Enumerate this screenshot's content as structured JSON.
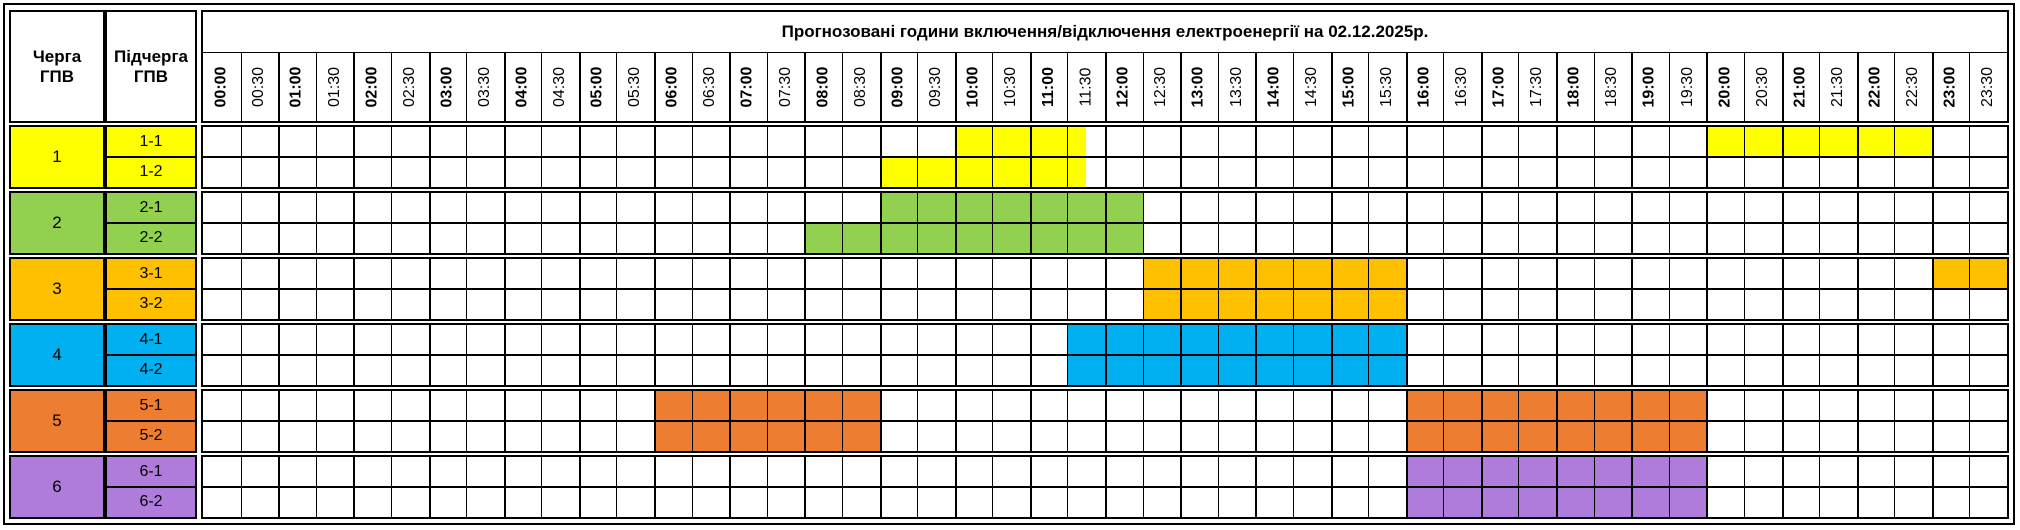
{
  "header": {
    "queue_label": "Черга\nГПВ",
    "subqueue_label": "Підчерга\nГПВ",
    "title": "Прогнозовані години включення/відключення електроенергії на 02.12.2025р."
  },
  "times": [
    "00:00",
    "00:30",
    "01:00",
    "01:30",
    "02:00",
    "02:30",
    "03:00",
    "03:30",
    "04:00",
    "04:30",
    "05:00",
    "05:30",
    "06:00",
    "06:30",
    "07:00",
    "07:30",
    "08:00",
    "08:30",
    "09:00",
    "09:30",
    "10:00",
    "10:30",
    "11:00",
    "11:30",
    "12:00",
    "12:30",
    "13:00",
    "13:30",
    "14:00",
    "14:30",
    "15:00",
    "15:30",
    "16:00",
    "16:30",
    "17:00",
    "17:30",
    "18:00",
    "18:30",
    "19:00",
    "19:30",
    "20:00",
    "20:30",
    "21:00",
    "21:30",
    "22:00",
    "22:30",
    "23:00",
    "23:30"
  ],
  "groups": [
    {
      "label": "1",
      "color": "#ffff00",
      "subs": [
        {
          "label": "1-1",
          "outages": [
            [
              20,
              23.5
            ],
            [
              40,
              46
            ]
          ]
        },
        {
          "label": "1-2",
          "outages": [
            [
              18,
              23.5
            ]
          ]
        }
      ]
    },
    {
      "label": "2",
      "color": "#92d050",
      "subs": [
        {
          "label": "2-1",
          "outages": [
            [
              18,
              25
            ]
          ]
        },
        {
          "label": "2-2",
          "outages": [
            [
              16,
              25
            ]
          ]
        }
      ]
    },
    {
      "label": "3",
      "color": "#ffc000",
      "subs": [
        {
          "label": "3-1",
          "outages": [
            [
              25,
              32
            ],
            [
              46,
              48
            ]
          ]
        },
        {
          "label": "3-2",
          "outages": [
            [
              25,
              32
            ]
          ]
        }
      ]
    },
    {
      "label": "4",
      "color": "#00b0f0",
      "subs": [
        {
          "label": "4-1",
          "outages": [
            [
              23,
              32
            ]
          ]
        },
        {
          "label": "4-2",
          "outages": [
            [
              23,
              32
            ]
          ]
        }
      ]
    },
    {
      "label": "5",
      "color": "#ed7d31",
      "subs": [
        {
          "label": "5-1",
          "outages": [
            [
              12,
              18
            ],
            [
              32,
              40
            ]
          ]
        },
        {
          "label": "5-2",
          "outages": [
            [
              12,
              18
            ],
            [
              32,
              40
            ]
          ]
        }
      ]
    },
    {
      "label": "6",
      "color": "#b07cdc",
      "subs": [
        {
          "label": "6-1",
          "outages": [
            [
              32,
              40
            ]
          ]
        },
        {
          "label": "6-2",
          "outages": [
            [
              32,
              40
            ]
          ]
        }
      ]
    }
  ]
}
